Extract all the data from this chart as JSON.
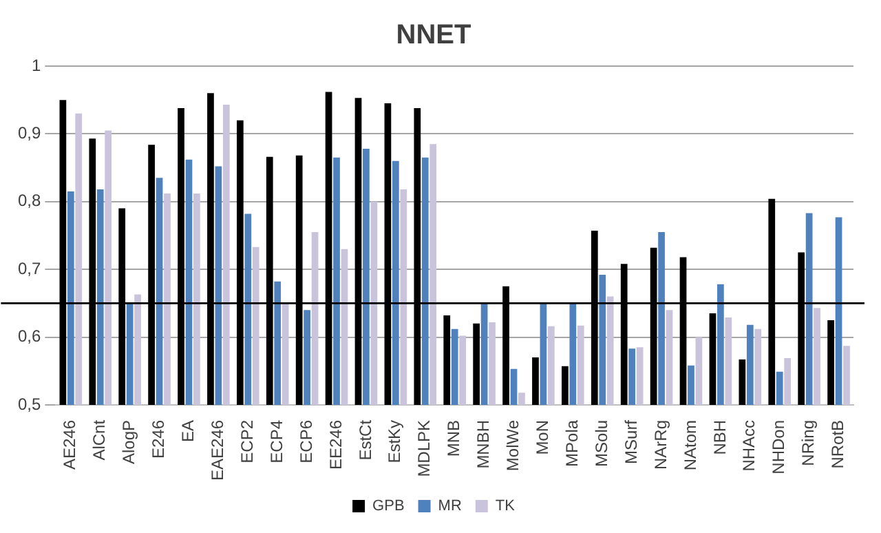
{
  "chart_data": {
    "type": "bar",
    "title": "NNET",
    "categories": [
      "AE246",
      "AlCnt",
      "AlogP",
      "E246",
      "EA",
      "EAE246",
      "ECP2",
      "ECP4",
      "ECP6",
      "EE246",
      "EstCt",
      "EstKy",
      "MDLPK",
      "MNB",
      "MNBH",
      "MolWe",
      "MoN",
      "MPola",
      "MSolu",
      "MSurf",
      "NArRg",
      "NAtom",
      "NBH",
      "NHAcc",
      "NHDon",
      "NRing",
      "NRotB"
    ],
    "series": [
      {
        "name": "GPB",
        "color": "#000000",
        "values": [
          0.95,
          0.893,
          0.79,
          0.884,
          0.938,
          0.96,
          0.92,
          0.866,
          0.868,
          0.962,
          0.953,
          0.945,
          0.938,
          0.632,
          0.62,
          0.675,
          0.57,
          0.557,
          0.757,
          0.708,
          0.732,
          0.718,
          0.635,
          0.567,
          0.804,
          0.725,
          0.625
        ]
      },
      {
        "name": "MR",
        "color": "#4f81bd",
        "values": [
          0.815,
          0.818,
          0.65,
          0.835,
          0.862,
          0.852,
          0.782,
          0.682,
          0.64,
          0.865,
          0.878,
          0.86,
          0.865,
          0.612,
          0.65,
          0.553,
          0.65,
          0.65,
          0.692,
          0.583,
          0.755,
          0.558,
          0.678,
          0.618,
          0.549,
          0.783,
          0.777
        ]
      },
      {
        "name": "TK",
        "color": "#c9c3db",
        "values": [
          0.93,
          0.905,
          0.663,
          0.812,
          0.812,
          0.943,
          0.733,
          0.65,
          0.755,
          0.73,
          0.8,
          0.818,
          0.885,
          0.602,
          0.622,
          0.518,
          0.616,
          0.617,
          0.66,
          0.585,
          0.64,
          0.6,
          0.629,
          0.612,
          0.569,
          0.643,
          0.587
        ]
      }
    ],
    "ylim": [
      0.5,
      1
    ],
    "yticks": [
      {
        "value": 0.5,
        "label": "0,5"
      },
      {
        "value": 0.6,
        "label": "0,6"
      },
      {
        "value": 0.7,
        "label": "0,7"
      },
      {
        "value": 0.8,
        "label": "0,8"
      },
      {
        "value": 0.9,
        "label": "0,9"
      },
      {
        "value": 1,
        "label": "1"
      }
    ],
    "grid": "y",
    "legend": "bottom",
    "ref_lines": [
      {
        "axis": "y",
        "value": 0.65,
        "color": "#000000"
      }
    ]
  }
}
